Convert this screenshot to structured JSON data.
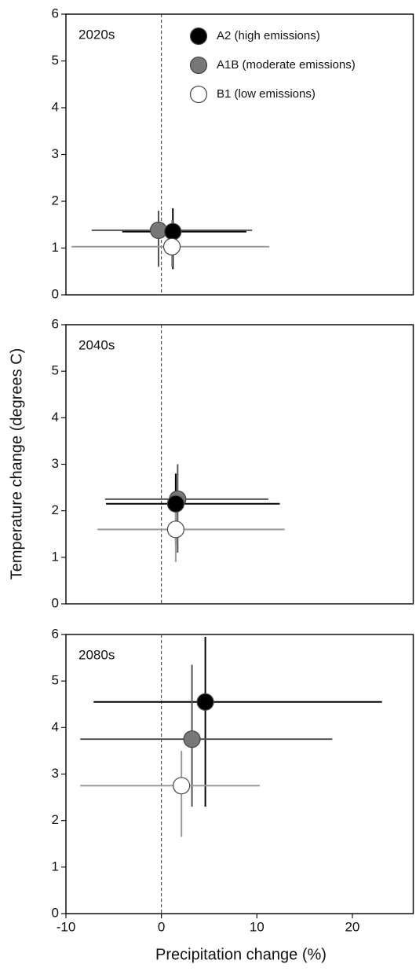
{
  "axis_labels": {
    "x": "Precipitation change (%)",
    "y": "Temperature change (degrees C)"
  },
  "chart_data": [
    {
      "type": "scatter",
      "label": "2020s",
      "xlim": [
        -10,
        26.5
      ],
      "ylim": [
        0,
        6
      ],
      "yticks": [
        0,
        1,
        2,
        3,
        4,
        5,
        6
      ],
      "series": [
        {
          "name": "A2 (high emissions)",
          "color": "#000000",
          "bar_color": "#000000",
          "x": 1.2,
          "y": 1.35,
          "x_min": -4.1,
          "x_max": 8.9,
          "y_min": 0.55,
          "y_max": 1.85
        },
        {
          "name": "A1B (moderate emissions)",
          "color": "#777777",
          "bar_color": "#555555",
          "x": -0.3,
          "y": 1.38,
          "x_min": -7.3,
          "x_max": 9.5,
          "y_min": 0.6,
          "y_max": 1.8
        },
        {
          "name": "B1 (low emissions)",
          "color": "#ffffff",
          "bar_color": "#999999",
          "x": 1.1,
          "y": 1.03,
          "x_min": -9.4,
          "x_max": 11.3,
          "y_min": 0.6,
          "y_max": 1.6
        }
      ]
    },
    {
      "type": "scatter",
      "label": "2040s",
      "xlim": [
        -10,
        26.5
      ],
      "ylim": [
        0,
        6
      ],
      "yticks": [
        0,
        1,
        2,
        3,
        4,
        5,
        6
      ],
      "series": [
        {
          "x": 1.5,
          "y": 2.15,
          "x_min": -5.8,
          "x_max": 12.4,
          "y_min": 1.3,
          "y_max": 2.8
        },
        {
          "x": 1.7,
          "y": 2.25,
          "x_min": -5.9,
          "x_max": 11.2,
          "y_min": 1.1,
          "y_max": 3.0
        },
        {
          "x": 1.5,
          "y": 1.6,
          "x_min": -6.7,
          "x_max": 12.9,
          "y_min": 0.9,
          "y_max": 2.3
        }
      ]
    },
    {
      "type": "scatter",
      "label": "2080s",
      "xlim": [
        -10,
        26.5
      ],
      "ylim": [
        0,
        6
      ],
      "yticks": [
        0,
        1,
        2,
        3,
        4,
        5,
        6
      ],
      "xticks": [
        -10,
        0,
        10,
        20
      ],
      "series": [
        {
          "x": 4.6,
          "y": 4.55,
          "x_min": -7.1,
          "x_max": 23.1,
          "y_min": 2.3,
          "y_max": 5.95
        },
        {
          "x": 3.2,
          "y": 3.75,
          "x_min": -8.5,
          "x_max": 17.9,
          "y_min": 2.3,
          "y_max": 5.35
        },
        {
          "x": 2.1,
          "y": 2.75,
          "x_min": -8.5,
          "x_max": 10.3,
          "y_min": 1.65,
          "y_max": 3.5
        }
      ]
    }
  ]
}
